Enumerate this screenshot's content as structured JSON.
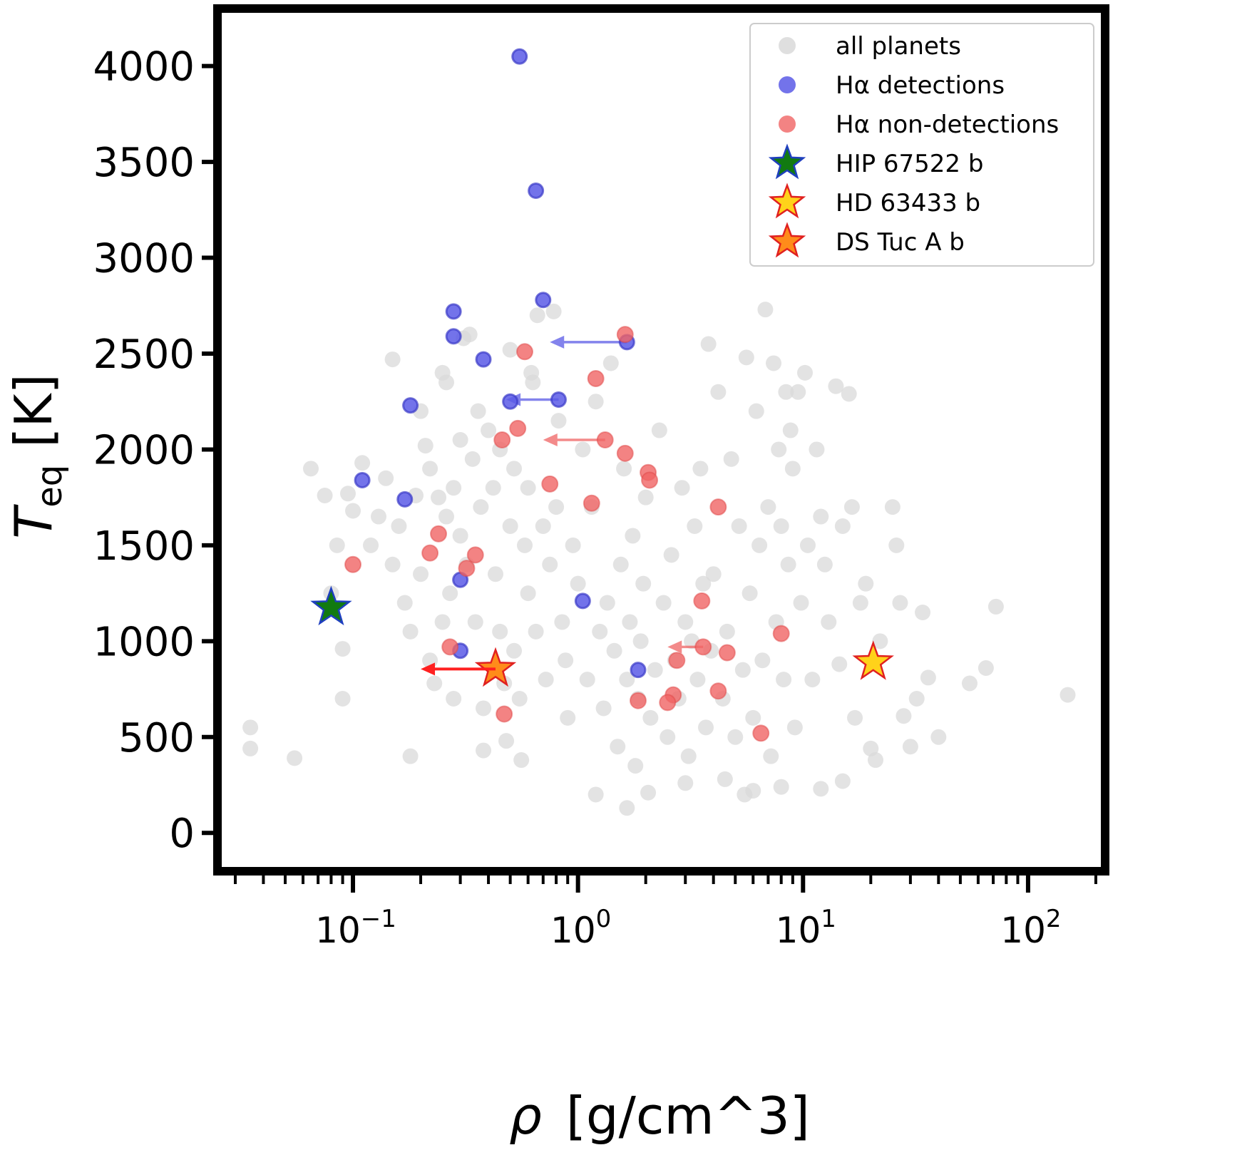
{
  "chart_data": {
    "type": "scatter",
    "title": "",
    "xlabel_symbol": "ρ",
    "xlabel_units": "[g/cm^3]",
    "ylabel_symbol": "T",
    "ylabel_subscript": "eq",
    "ylabel_units": "[K]",
    "xscale": "log",
    "xlim": [
      0.025,
      220
    ],
    "ylim": [
      -200,
      4300
    ],
    "yticks": [
      "0",
      "500",
      "1000",
      "1500",
      "2000",
      "2500",
      "3000",
      "3500",
      "4000"
    ],
    "yticks_values": [
      0,
      500,
      1000,
      1500,
      2000,
      2500,
      3000,
      3500,
      4000
    ],
    "xticks_values": [
      0.1,
      1,
      10,
      100
    ],
    "xtick_base": "10",
    "xtick_exponents": [
      "−1",
      "0",
      "1",
      "2"
    ],
    "legend_position": "top-right",
    "colors": {
      "all_planets": "#d9d9d9",
      "detection": "#5a5ae6",
      "detection_edge": "#3a3ac8",
      "nondetection": "#f06464",
      "nondetection_edge": "#e04848",
      "hip": "#117a11",
      "hip_edge": "#1f3fbf",
      "hd": "#ffd21a",
      "hd_edge": "#e02020",
      "ds": "#ff8c1a",
      "ds_edge": "#e02020",
      "arrow_red": "#ff2020"
    },
    "legend": [
      {
        "key": "all",
        "label": "all planets"
      },
      {
        "key": "det",
        "label": "Hα detections"
      },
      {
        "key": "nondet",
        "label": "Hα non-detections"
      },
      {
        "key": "hip",
        "label": "HIP 67522 b"
      },
      {
        "key": "hd",
        "label": "HD 63433 b"
      },
      {
        "key": "ds",
        "label": "DS Tuc A b"
      }
    ],
    "series": [
      {
        "name": "all planets",
        "points": [
          [
            0.035,
            550
          ],
          [
            0.035,
            440
          ],
          [
            0.055,
            390
          ],
          [
            0.065,
            1900
          ],
          [
            0.075,
            1760
          ],
          [
            0.08,
            1250
          ],
          [
            0.085,
            1500
          ],
          [
            0.09,
            960
          ],
          [
            0.09,
            700
          ],
          [
            0.095,
            1770
          ],
          [
            0.1,
            1680
          ],
          [
            0.11,
            1930
          ],
          [
            0.12,
            1500
          ],
          [
            0.13,
            1650
          ],
          [
            0.14,
            1850
          ],
          [
            0.15,
            2470
          ],
          [
            0.15,
            1400
          ],
          [
            0.16,
            1600
          ],
          [
            0.17,
            1200
          ],
          [
            0.18,
            1050
          ],
          [
            0.18,
            400
          ],
          [
            0.19,
            1760
          ],
          [
            0.2,
            2200
          ],
          [
            0.2,
            1350
          ],
          [
            0.21,
            2020
          ],
          [
            0.22,
            1900
          ],
          [
            0.22,
            900
          ],
          [
            0.23,
            780
          ],
          [
            0.24,
            1750
          ],
          [
            0.25,
            2400
          ],
          [
            0.25,
            1100
          ],
          [
            0.26,
            2350
          ],
          [
            0.26,
            1650
          ],
          [
            0.27,
            1250
          ],
          [
            0.28,
            1800
          ],
          [
            0.28,
            700
          ],
          [
            0.3,
            2050
          ],
          [
            0.3,
            1550
          ],
          [
            0.31,
            2580
          ],
          [
            0.32,
            1400
          ],
          [
            0.33,
            2600
          ],
          [
            0.34,
            1950
          ],
          [
            0.35,
            1100
          ],
          [
            0.36,
            2200
          ],
          [
            0.37,
            1700
          ],
          [
            0.38,
            650
          ],
          [
            0.38,
            430
          ],
          [
            0.4,
            2100
          ],
          [
            0.42,
            1800
          ],
          [
            0.43,
            1350
          ],
          [
            0.45,
            2000
          ],
          [
            0.45,
            1050
          ],
          [
            0.47,
            780
          ],
          [
            0.48,
            480
          ],
          [
            0.5,
            1600
          ],
          [
            0.5,
            2520
          ],
          [
            0.52,
            1900
          ],
          [
            0.52,
            950
          ],
          [
            0.55,
            700
          ],
          [
            0.56,
            380
          ],
          [
            0.58,
            1500
          ],
          [
            0.6,
            1800
          ],
          [
            0.6,
            1250
          ],
          [
            0.62,
            2400
          ],
          [
            0.63,
            2350
          ],
          [
            0.65,
            1050
          ],
          [
            0.66,
            2700
          ],
          [
            0.7,
            1600
          ],
          [
            0.72,
            800
          ],
          [
            0.75,
            1400
          ],
          [
            0.78,
            2720
          ],
          [
            0.8,
            1700
          ],
          [
            0.82,
            2150
          ],
          [
            0.85,
            1100
          ],
          [
            0.88,
            900
          ],
          [
            0.9,
            600
          ],
          [
            0.95,
            1500
          ],
          [
            1.0,
            1300
          ],
          [
            1.05,
            2000
          ],
          [
            1.1,
            800
          ],
          [
            1.15,
            1700
          ],
          [
            1.2,
            2250
          ],
          [
            1.25,
            1050
          ],
          [
            1.3,
            650
          ],
          [
            1.35,
            1200
          ],
          [
            1.4,
            2450
          ],
          [
            1.45,
            950
          ],
          [
            1.5,
            450
          ],
          [
            1.55,
            1400
          ],
          [
            1.6,
            1900
          ],
          [
            1.65,
            800
          ],
          [
            1.7,
            1100
          ],
          [
            1.75,
            1550
          ],
          [
            1.8,
            350
          ],
          [
            1.85,
            700
          ],
          [
            1.9,
            1000
          ],
          [
            1.95,
            1300
          ],
          [
            2.0,
            1750
          ],
          [
            2.1,
            600
          ],
          [
            2.2,
            850
          ],
          [
            2.3,
            2100
          ],
          [
            2.4,
            1200
          ],
          [
            2.5,
            500
          ],
          [
            2.6,
            1450
          ],
          [
            2.7,
            900
          ],
          [
            2.8,
            700
          ],
          [
            2.9,
            1800
          ],
          [
            3.0,
            1100
          ],
          [
            3.1,
            400
          ],
          [
            3.2,
            1000
          ],
          [
            3.3,
            1600
          ],
          [
            3.4,
            800
          ],
          [
            3.5,
            1900
          ],
          [
            3.6,
            1300
          ],
          [
            3.7,
            550
          ],
          [
            3.8,
            2550
          ],
          [
            3.9,
            950
          ],
          [
            4.0,
            1350
          ],
          [
            4.2,
            2300
          ],
          [
            4.4,
            700
          ],
          [
            4.6,
            1050
          ],
          [
            4.8,
            1950
          ],
          [
            5.0,
            500
          ],
          [
            5.2,
            1600
          ],
          [
            5.4,
            850
          ],
          [
            5.6,
            2480
          ],
          [
            5.8,
            1250
          ],
          [
            6.0,
            600
          ],
          [
            6.2,
            2200
          ],
          [
            6.4,
            1500
          ],
          [
            6.6,
            900
          ],
          [
            6.8,
            2730
          ],
          [
            7.0,
            1700
          ],
          [
            7.2,
            400
          ],
          [
            7.4,
            2450
          ],
          [
            7.6,
            1100
          ],
          [
            7.8,
            2000
          ],
          [
            8.0,
            1600
          ],
          [
            8.2,
            800
          ],
          [
            8.4,
            2300
          ],
          [
            8.6,
            1400
          ],
          [
            8.8,
            2100
          ],
          [
            9.0,
            1900
          ],
          [
            9.2,
            550
          ],
          [
            9.5,
            2300
          ],
          [
            9.8,
            1200
          ],
          [
            10.2,
            2400
          ],
          [
            10.5,
            1500
          ],
          [
            11.0,
            800
          ],
          [
            11.5,
            2000
          ],
          [
            12.0,
            1650
          ],
          [
            12.5,
            1400
          ],
          [
            13.0,
            1100
          ],
          [
            14.0,
            2330
          ],
          [
            14.5,
            880
          ],
          [
            15.0,
            1600
          ],
          [
            16.0,
            2290
          ],
          [
            16.5,
            1700
          ],
          [
            17.0,
            600
          ],
          [
            18.0,
            1200
          ],
          [
            19.0,
            1300
          ],
          [
            20.0,
            440
          ],
          [
            21.0,
            380
          ],
          [
            22.0,
            1000
          ],
          [
            25.0,
            1700
          ],
          [
            26.0,
            1500
          ],
          [
            27.0,
            1200
          ],
          [
            28.0,
            610
          ],
          [
            30.0,
            450
          ],
          [
            32.0,
            700
          ],
          [
            34.0,
            1150
          ],
          [
            36.0,
            810
          ],
          [
            40.0,
            500
          ],
          [
            55.0,
            780
          ],
          [
            65.0,
            860
          ],
          [
            72.0,
            1180
          ],
          [
            150.0,
            720
          ],
          [
            2.05,
            210
          ],
          [
            1.2,
            200
          ],
          [
            1.65,
            130
          ],
          [
            3.0,
            260
          ],
          [
            4.5,
            280
          ],
          [
            6.0,
            220
          ],
          [
            8.0,
            240
          ],
          [
            12.0,
            230
          ],
          [
            15.0,
            270
          ],
          [
            5.5,
            200
          ]
        ]
      },
      {
        "name": "Hα detections",
        "points": [
          [
            0.55,
            4050
          ],
          [
            0.65,
            3350
          ],
          [
            0.7,
            2780
          ],
          [
            0.28,
            2720
          ],
          [
            0.28,
            2590
          ],
          [
            0.38,
            2470
          ],
          [
            0.18,
            2230
          ],
          [
            0.82,
            2260
          ],
          [
            0.5,
            2250
          ],
          [
            1.65,
            2560
          ],
          [
            0.11,
            1840
          ],
          [
            0.17,
            1740
          ],
          [
            0.3,
            1320
          ],
          [
            1.05,
            1210
          ],
          [
            0.3,
            950
          ],
          [
            1.85,
            850
          ]
        ]
      },
      {
        "name": "Hα non-detections",
        "points": [
          [
            1.62,
            2600
          ],
          [
            0.58,
            2510
          ],
          [
            1.2,
            2370
          ],
          [
            0.54,
            2110
          ],
          [
            0.46,
            2050
          ],
          [
            1.32,
            2050
          ],
          [
            1.62,
            1980
          ],
          [
            2.05,
            1880
          ],
          [
            2.08,
            1840
          ],
          [
            0.75,
            1820
          ],
          [
            1.15,
            1720
          ],
          [
            4.2,
            1700
          ],
          [
            0.24,
            1560
          ],
          [
            0.22,
            1460
          ],
          [
            0.35,
            1450
          ],
          [
            0.32,
            1380
          ],
          [
            0.1,
            1400
          ],
          [
            3.55,
            1210
          ],
          [
            8.0,
            1040
          ],
          [
            0.27,
            970
          ],
          [
            3.6,
            970
          ],
          [
            4.6,
            940
          ],
          [
            2.75,
            900
          ],
          [
            4.2,
            740
          ],
          [
            2.65,
            720
          ],
          [
            2.5,
            680
          ],
          [
            1.85,
            690
          ],
          [
            0.47,
            620
          ],
          [
            6.5,
            520
          ]
        ]
      },
      {
        "name": "HIP 67522 b",
        "marker": "star",
        "points": [
          [
            0.08,
            1175
          ]
        ]
      },
      {
        "name": "HD 63433 b",
        "marker": "star",
        "points": [
          [
            20.5,
            890
          ]
        ]
      },
      {
        "name": "DS Tuc A b",
        "marker": "star",
        "points": [
          [
            0.43,
            855
          ]
        ]
      }
    ],
    "upper_limit_arrows": [
      {
        "from": [
          1.65,
          2560
        ],
        "to": [
          0.75,
          2560
        ],
        "color": "detection"
      },
      {
        "from": [
          0.82,
          2260
        ],
        "to": [
          0.48,
          2260
        ],
        "color": "detection"
      },
      {
        "from": [
          1.32,
          2050
        ],
        "to": [
          0.7,
          2050
        ],
        "color": "nondetection"
      },
      {
        "from": [
          3.6,
          970
        ],
        "to": [
          2.5,
          970
        ],
        "color": "nondetection"
      },
      {
        "from": [
          0.43,
          855
        ],
        "to": [
          0.2,
          855
        ],
        "color": "arrow_red"
      }
    ]
  }
}
